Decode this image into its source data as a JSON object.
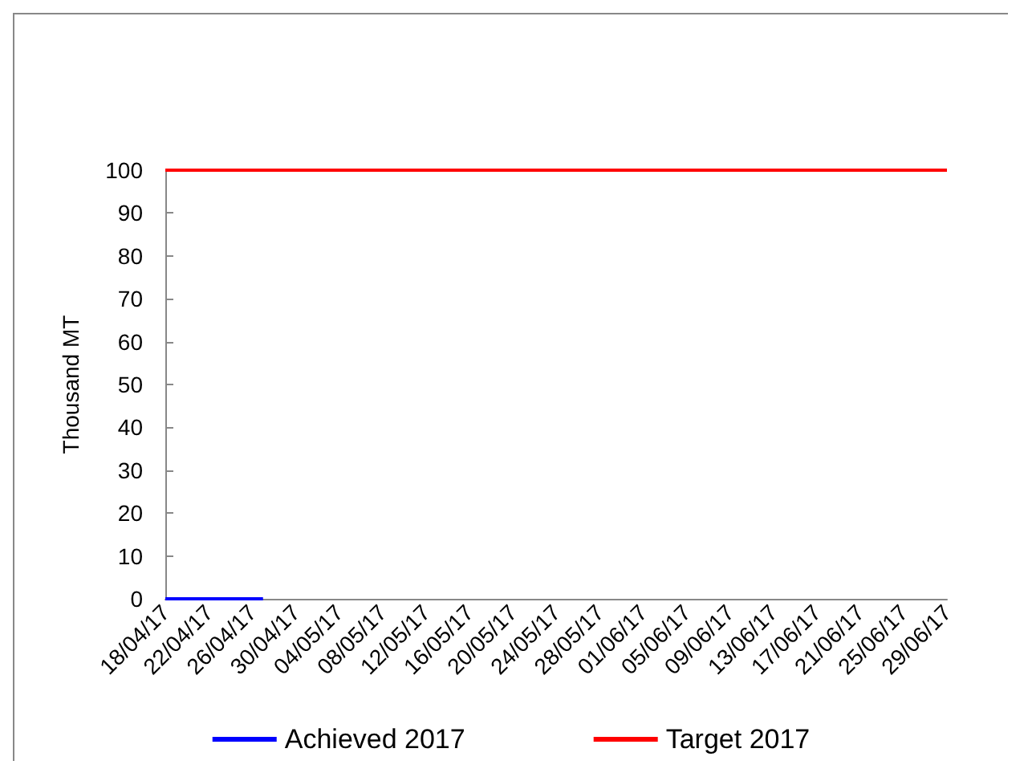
{
  "chart_data": {
    "type": "line",
    "ylabel": "Thousand MT",
    "xlim": [
      "2017-04-18",
      "2017-06-29"
    ],
    "xticks": [
      {
        "value": "2017-04-18",
        "label": "18/04/17"
      },
      {
        "value": "2017-04-22",
        "label": "22/04/17"
      },
      {
        "value": "2017-04-26",
        "label": "26/04/17"
      },
      {
        "value": "2017-04-30",
        "label": "30/04/17"
      },
      {
        "value": "2017-05-04",
        "label": "04/05/17"
      },
      {
        "value": "2017-05-08",
        "label": "08/05/17"
      },
      {
        "value": "2017-05-12",
        "label": "12/05/17"
      },
      {
        "value": "2017-05-16",
        "label": "16/05/17"
      },
      {
        "value": "2017-05-20",
        "label": "20/05/17"
      },
      {
        "value": "2017-05-24",
        "label": "24/05/17"
      },
      {
        "value": "2017-05-28",
        "label": "28/05/17"
      },
      {
        "value": "2017-06-01",
        "label": "01/06/17"
      },
      {
        "value": "2017-06-05",
        "label": "05/06/17"
      },
      {
        "value": "2017-06-09",
        "label": "09/06/17"
      },
      {
        "value": "2017-06-13",
        "label": "13/06/17"
      },
      {
        "value": "2017-06-17",
        "label": "17/06/17"
      },
      {
        "value": "2017-06-21",
        "label": "21/06/17"
      },
      {
        "value": "2017-06-25",
        "label": "25/06/17"
      },
      {
        "value": "2017-06-29",
        "label": "29/06/17"
      }
    ],
    "ylim": [
      0,
      100
    ],
    "yticks": [
      0,
      10,
      20,
      30,
      40,
      50,
      60,
      70,
      80,
      90,
      100
    ],
    "grid": false,
    "legend": "bottom",
    "marker": "none",
    "line_style": "solid",
    "series": [
      {
        "name": "Achieved 2017",
        "color": "#0000ff",
        "x": [
          "2017-04-18",
          "2017-04-27"
        ],
        "values": [
          0,
          0
        ]
      },
      {
        "name": "Target 2017",
        "color": "#ff0000",
        "x": [
          "2017-04-18",
          "2017-06-29"
        ],
        "values": [
          100,
          100
        ]
      }
    ]
  }
}
